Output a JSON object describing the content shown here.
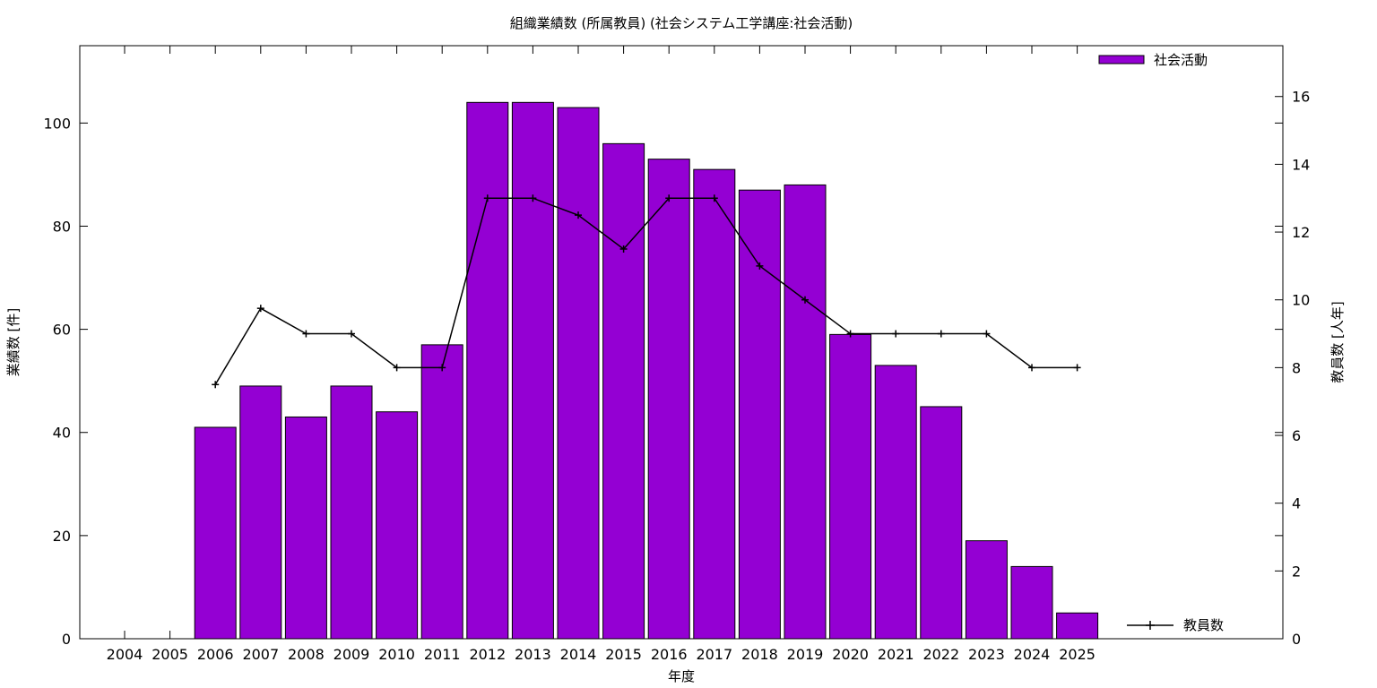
{
  "chart_data": {
    "type": "bar",
    "title": "組織業績数 (所属教員) (社会システム工学講座:社会活動)",
    "xlabel": "年度",
    "ylabel": "業績数 [件]",
    "y2label": "教員数 [人年]",
    "categories": [
      "2004",
      "2005",
      "2006",
      "2007",
      "2008",
      "2009",
      "2010",
      "2011",
      "2012",
      "2013",
      "2014",
      "2015",
      "2016",
      "2017",
      "2018",
      "2019",
      "2020",
      "2021",
      "2022",
      "2023",
      "2024",
      "2025"
    ],
    "ylim": [
      0,
      115
    ],
    "y2lim": [
      0,
      17.5
    ],
    "yticks": [
      0,
      20,
      40,
      60,
      80,
      100
    ],
    "y2ticks": [
      0,
      2,
      4,
      6,
      8,
      10,
      12,
      14,
      16
    ],
    "series": [
      {
        "name": "社会活動",
        "type": "bar",
        "axis": "left",
        "color": "#9400d3",
        "values": [
          null,
          null,
          41,
          49,
          43,
          49,
          44,
          57,
          104,
          104,
          103,
          96,
          93,
          91,
          87,
          88,
          59,
          53,
          45,
          19,
          14,
          5
        ]
      },
      {
        "name": "教員数",
        "type": "line",
        "axis": "right",
        "color": "#000000",
        "values": [
          null,
          null,
          7.5,
          9.75,
          9,
          9,
          8,
          8,
          13,
          13,
          12.5,
          11.5,
          13,
          13,
          11,
          10,
          9,
          9,
          9,
          9,
          8,
          8
        ]
      }
    ],
    "legend": {
      "bar_position": "top-right",
      "line_position": "bottom-right"
    }
  }
}
